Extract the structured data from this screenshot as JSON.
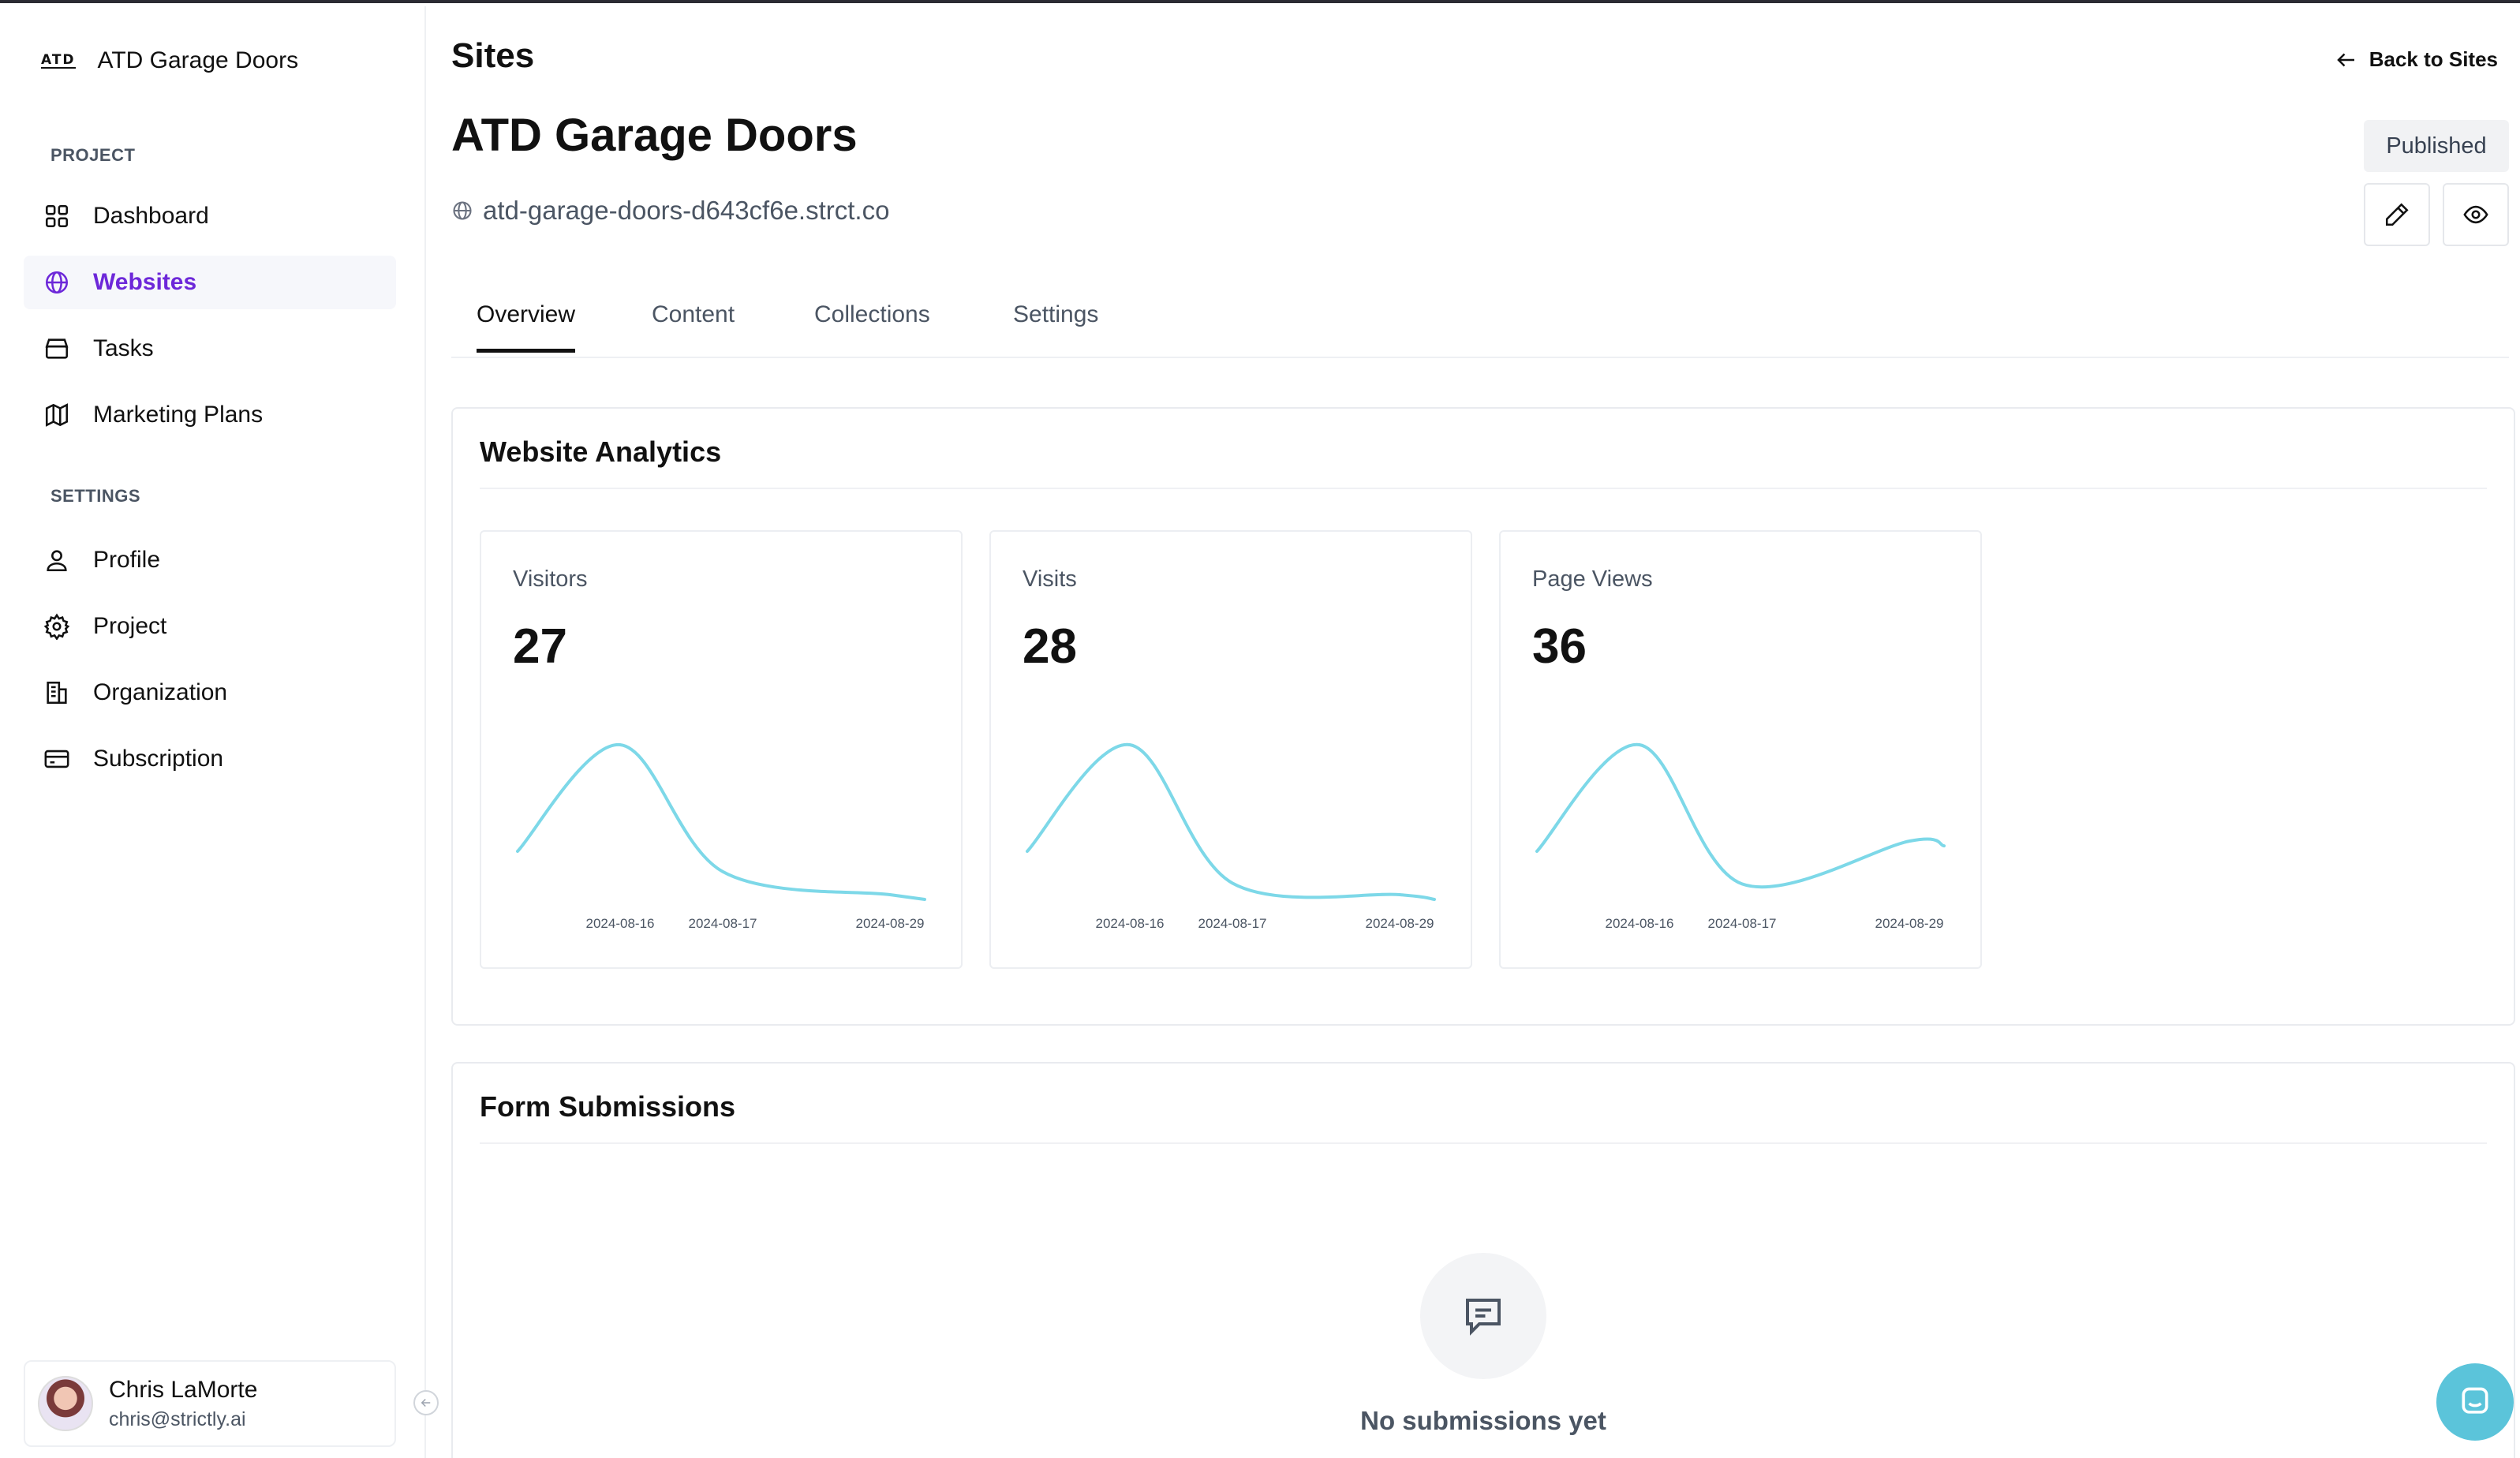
{
  "sidebar": {
    "brand": {
      "logo_text": "ATD",
      "name": "ATD Garage Doors"
    },
    "sections": [
      {
        "label": "PROJECT"
      },
      {
        "label": "SETTINGS"
      }
    ],
    "items": [
      {
        "label": "Dashboard",
        "icon": "grid-icon"
      },
      {
        "label": "Websites",
        "icon": "globe-icon",
        "active": true
      },
      {
        "label": "Tasks",
        "icon": "archive-icon"
      },
      {
        "label": "Marketing Plans",
        "icon": "map-icon"
      },
      {
        "label": "Profile",
        "icon": "user-icon"
      },
      {
        "label": "Project",
        "icon": "gear-icon"
      },
      {
        "label": "Organization",
        "icon": "building-icon"
      },
      {
        "label": "Subscription",
        "icon": "credit-card-icon"
      }
    ],
    "user": {
      "name": "Chris LaMorte",
      "email": "chris@strictly.ai"
    }
  },
  "header": {
    "page_title": "Sites",
    "back_label": "Back to Sites",
    "site_title": "ATD Garage Doors",
    "site_url": "atd-garage-doors-d643cf6e.strct.co",
    "status": "Published"
  },
  "tabs": [
    {
      "label": "Overview",
      "active": true
    },
    {
      "label": "Content"
    },
    {
      "label": "Collections"
    },
    {
      "label": "Settings"
    }
  ],
  "analytics": {
    "title": "Website Analytics",
    "cards": [
      {
        "label": "Visitors",
        "value": "27"
      },
      {
        "label": "Visits",
        "value": "28"
      },
      {
        "label": "Page Views",
        "value": "36"
      }
    ]
  },
  "chart_data": [
    {
      "type": "line",
      "title": "Visitors",
      "x": [
        "2024-08-16",
        "2024-08-17",
        "2024-08-29"
      ],
      "series": [
        {
          "values": [
            13,
            2,
            0
          ]
        }
      ],
      "color": "#7dd8e8"
    },
    {
      "type": "line",
      "title": "Visits",
      "x": [
        "2024-08-16",
        "2024-08-17",
        "2024-08-29"
      ],
      "series": [
        {
          "values": [
            13,
            1,
            0
          ]
        }
      ],
      "color": "#7dd8e8"
    },
    {
      "type": "line",
      "title": "Page Views",
      "x": [
        "2024-08-16",
        "2024-08-17",
        "2024-08-29"
      ],
      "series": [
        {
          "values": [
            14,
            1,
            5
          ]
        }
      ],
      "color": "#7dd8e8"
    }
  ],
  "forms": {
    "title": "Form Submissions",
    "empty_text": "No submissions yet"
  }
}
